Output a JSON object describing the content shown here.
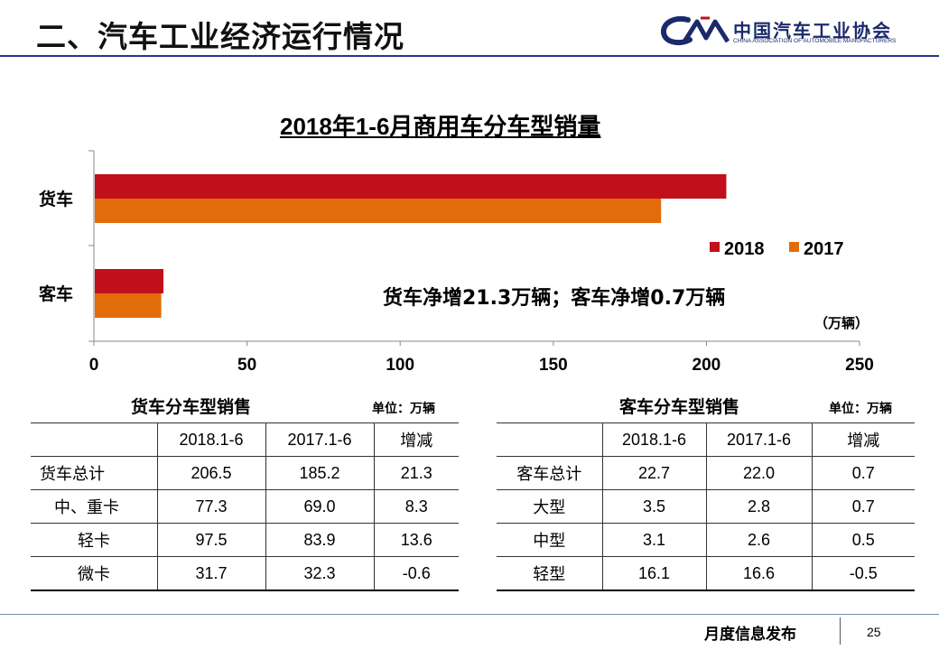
{
  "header": {
    "title": "二、汽车工业经济运行情况",
    "logo_cn": "中国汽车工业协会",
    "logo_en": "CHINA ASSOCIATION OF AUTOMOBILE MANUFACTURERS"
  },
  "chart_data": {
    "type": "bar",
    "orientation": "horizontal",
    "title": "2018年1-6月商用车分车型销量",
    "categories": [
      "货车",
      "客车"
    ],
    "series": [
      {
        "name": "2018",
        "values": [
          206.5,
          22.7
        ],
        "color": "#c0101a"
      },
      {
        "name": "2017",
        "values": [
          185.2,
          22.0
        ],
        "color": "#e36c0a"
      }
    ],
    "xlim": [
      0,
      250
    ],
    "xticks": [
      "0",
      "50",
      "100",
      "150",
      "200",
      "250"
    ],
    "unit_label": "（万辆）",
    "annotation": "货车净增21.3万辆；客车净增0.7万辆",
    "legend_position": "top-right"
  },
  "truck_table": {
    "title": "货车分车型销售",
    "unit": "单位：万辆",
    "headers": [
      "",
      "2018.1-6",
      "2017.1-6",
      "增减"
    ],
    "rows": [
      [
        "货车总计",
        "206.5",
        "185.2",
        "21.3"
      ],
      [
        "中、重卡",
        "77.3",
        "69.0",
        "8.3"
      ],
      [
        "轻卡",
        "97.5",
        "83.9",
        "13.6"
      ],
      [
        "微卡",
        "31.7",
        "32.3",
        "-0.6"
      ]
    ]
  },
  "bus_table": {
    "title": "客车分车型销售",
    "unit": "单位：万辆",
    "headers": [
      "",
      "2018.1-6",
      "2017.1-6",
      "增减"
    ],
    "rows": [
      [
        "客车总计",
        "22.7",
        "22.0",
        "0.7"
      ],
      [
        "大型",
        "3.5",
        "2.8",
        "0.7"
      ],
      [
        "中型",
        "3.1",
        "2.6",
        "0.5"
      ],
      [
        "轻型",
        "16.1",
        "16.6",
        "-0.5"
      ]
    ]
  },
  "footer": {
    "text": "月度信息发布",
    "page": "25"
  }
}
